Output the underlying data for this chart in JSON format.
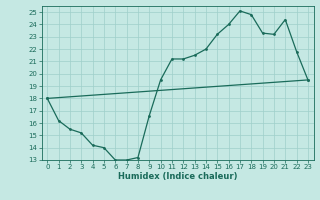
{
  "title": "",
  "xlabel": "Humidex (Indice chaleur)",
  "bg_color": "#c5e8e3",
  "grid_color": "#9fcfca",
  "line_color": "#1a6b5a",
  "line1_x": [
    0,
    1,
    2,
    3,
    4,
    5,
    6,
    7,
    8,
    9,
    10,
    11,
    12,
    13,
    14,
    15,
    16,
    17,
    18,
    19,
    20,
    21,
    22,
    23
  ],
  "line1_y": [
    18.0,
    16.2,
    15.5,
    15.2,
    14.2,
    14.0,
    13.0,
    13.0,
    13.2,
    16.6,
    19.5,
    21.2,
    21.2,
    21.5,
    22.0,
    23.2,
    24.0,
    25.1,
    24.8,
    23.3,
    23.2,
    24.4,
    21.8,
    19.5
  ],
  "line2_x": [
    0,
    23
  ],
  "line2_y": [
    18.0,
    19.5
  ],
  "xlim": [
    -0.5,
    23.5
  ],
  "ylim": [
    13,
    25.5
  ],
  "yticks": [
    13,
    14,
    15,
    16,
    17,
    18,
    19,
    20,
    21,
    22,
    23,
    24,
    25
  ],
  "xticks": [
    0,
    1,
    2,
    3,
    4,
    5,
    6,
    7,
    8,
    9,
    10,
    11,
    12,
    13,
    14,
    15,
    16,
    17,
    18,
    19,
    20,
    21,
    22,
    23
  ],
  "tick_fontsize": 5.0,
  "xlabel_fontsize": 6.0,
  "linewidth": 0.9,
  "markersize": 2.0
}
